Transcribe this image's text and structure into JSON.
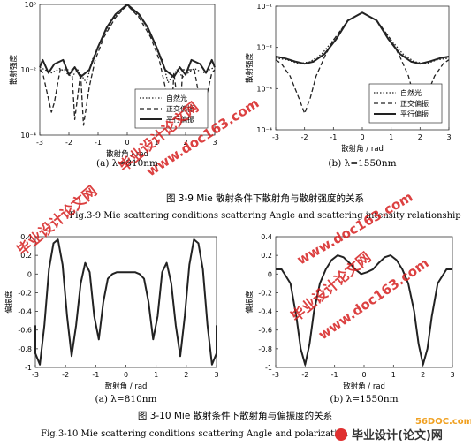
{
  "figure_3_9": {
    "caption_cn": "图 3-9   Mie 散射条件下散射角与散射强度的关系",
    "caption_en": "Fig.3-9 Mie scattering conditions scattering Angle and scattering intensity relationship"
  },
  "figure_3_10": {
    "caption_cn": "图 3-10   Mie 散射条件下散射角与偏振度的关系",
    "caption_en": "Fig.3-10 Mie scattering conditions scattering Angle and polarization"
  },
  "watermarks": {
    "site_cn": "毕业设计论文网",
    "site_url": "www.doc163.com",
    "footer_url": "56DOC.com",
    "footer_cn": "毕业设计(论文)网"
  },
  "colors": {
    "line": "#222222",
    "watermark": "#d62020"
  },
  "chart_data": [
    {
      "id": "intensity-810",
      "type": "line",
      "subtitle": "(a) λ=810nm",
      "xlabel": "散射角 / rad",
      "ylabel": "散射强度",
      "xlim": [
        -3,
        3
      ],
      "ylim": [
        0.0001,
        1
      ],
      "yscale": "log",
      "xticks": [
        "-3",
        "-2",
        "-1",
        "0",
        "1",
        "2",
        "3"
      ],
      "yticks": [
        "10⁰",
        "10⁻²",
        "10⁻⁴"
      ],
      "legend": "bottom-right",
      "series": [
        {
          "name": "自然光",
          "dash": "dotted",
          "x": [
            -3.1,
            -2.6,
            -2.3,
            -1.9,
            -1.7,
            -1.4,
            -1.2,
            -0.9,
            -0.5,
            0,
            0.5,
            0.9,
            1.2,
            1.4,
            1.7,
            1.9,
            2.3,
            2.6,
            3.1
          ],
          "y": [
            0.012,
            0.008,
            0.011,
            0.006,
            0.01,
            0.004,
            0.02,
            0.08,
            0.35,
            0.95,
            0.35,
            0.08,
            0.02,
            0.004,
            0.01,
            0.006,
            0.011,
            0.008,
            0.012
          ]
        },
        {
          "name": "正交偏振",
          "dash": "dashed",
          "x": [
            -3.1,
            -2.9,
            -2.6,
            -2.5,
            -2.3,
            -1.9,
            -1.8,
            -1.6,
            -1.5,
            -1.3,
            -1.1,
            -0.8,
            -0.4,
            0,
            0.4,
            0.8,
            1.1,
            1.3,
            1.5,
            1.6,
            1.8,
            1.9,
            2.3,
            2.5,
            2.6,
            2.9,
            3.1
          ],
          "y": [
            0.01,
            0.008,
            0.0005,
            0.001,
            0.01,
            0.01,
            0.0003,
            0.008,
            0.0002,
            0.003,
            0.02,
            0.1,
            0.4,
            0.95,
            0.4,
            0.1,
            0.02,
            0.003,
            0.0002,
            0.008,
            0.0003,
            0.01,
            0.01,
            0.001,
            0.0005,
            0.008,
            0.01
          ]
        },
        {
          "name": "平行偏振",
          "dash": "solid",
          "x": [
            -3.1,
            -2.9,
            -2.7,
            -2.5,
            -2.2,
            -2.0,
            -1.8,
            -1.6,
            -1.3,
            -1.0,
            -0.7,
            -0.4,
            0,
            0.4,
            0.7,
            1.0,
            1.3,
            1.6,
            1.8,
            2.0,
            2.2,
            2.5,
            2.7,
            2.9,
            3.1
          ],
          "y": [
            0.012,
            0.02,
            0.008,
            0.015,
            0.02,
            0.007,
            0.012,
            0.006,
            0.01,
            0.05,
            0.2,
            0.5,
            1.0,
            0.5,
            0.2,
            0.05,
            0.01,
            0.006,
            0.012,
            0.007,
            0.02,
            0.015,
            0.008,
            0.02,
            0.012
          ]
        }
      ]
    },
    {
      "id": "intensity-1550",
      "type": "line",
      "subtitle": "(b) λ=1550nm",
      "xlabel": "散射角 / rad",
      "ylabel": "散射强度",
      "xlim": [
        -3,
        3
      ],
      "ylim": [
        0.0001,
        0.1
      ],
      "yscale": "log",
      "xticks": [
        "-3",
        "-2",
        "-1",
        "0",
        "1",
        "2",
        "3"
      ],
      "yticks": [
        "10⁻¹",
        "10⁻²",
        "10⁻³",
        "10⁻⁴"
      ],
      "legend": "bottom-right",
      "series": [
        {
          "name": "自然光",
          "dash": "dotted",
          "x": [
            -3.1,
            -2.6,
            -2.2,
            -1.8,
            -1.4,
            -1.0,
            -0.5,
            0,
            0.5,
            1.0,
            1.4,
            1.8,
            2.2,
            2.6,
            3.1
          ],
          "y": [
            0.0055,
            0.005,
            0.004,
            0.0045,
            0.007,
            0.015,
            0.045,
            0.07,
            0.045,
            0.015,
            0.007,
            0.0045,
            0.004,
            0.005,
            0.0055
          ]
        },
        {
          "name": "正交偏振",
          "dash": "dashed",
          "x": [
            -3.1,
            -2.8,
            -2.5,
            -2.2,
            -2.0,
            -1.8,
            -1.6,
            -1.3,
            -1.0,
            -0.5,
            0,
            0.5,
            1.0,
            1.3,
            1.6,
            1.8,
            2.0,
            2.2,
            2.5,
            2.8,
            3.1
          ],
          "y": [
            0.005,
            0.004,
            0.002,
            0.0006,
            0.00025,
            0.0006,
            0.002,
            0.006,
            0.015,
            0.045,
            0.07,
            0.045,
            0.015,
            0.006,
            0.002,
            0.0006,
            0.00025,
            0.0006,
            0.002,
            0.004,
            0.005
          ]
        },
        {
          "name": "平行偏振",
          "dash": "solid",
          "x": [
            -3.1,
            -2.7,
            -2.3,
            -2.0,
            -1.7,
            -1.3,
            -0.9,
            -0.5,
            0,
            0.5,
            0.9,
            1.3,
            1.7,
            2.0,
            2.3,
            2.7,
            3.1
          ],
          "y": [
            0.006,
            0.0055,
            0.0045,
            0.004,
            0.0045,
            0.007,
            0.016,
            0.045,
            0.07,
            0.045,
            0.016,
            0.007,
            0.0045,
            0.004,
            0.0045,
            0.0055,
            0.006
          ]
        }
      ]
    },
    {
      "id": "polarization-810",
      "type": "line",
      "subtitle": "(a) λ=810nm",
      "xlabel": "散射角 / rad",
      "ylabel": "偏振度",
      "xlim": [
        -3,
        3
      ],
      "ylim": [
        -1,
        0.4
      ],
      "xticks": [
        "-3",
        "-2",
        "-1",
        "0",
        "1",
        "2",
        "3"
      ],
      "yticks": [
        "0.4",
        "0.2",
        "0",
        "-0.2",
        "-0.4",
        "-0.6",
        "-0.8",
        "-1"
      ],
      "series": [
        {
          "name": "偏振度",
          "dash": "solid",
          "x": [
            -3.1,
            -3.0,
            -2.85,
            -2.7,
            -2.55,
            -2.4,
            -2.25,
            -2.1,
            -1.95,
            -1.8,
            -1.65,
            -1.5,
            -1.35,
            -1.2,
            -1.05,
            -0.9,
            -0.75,
            -0.6,
            -0.45,
            -0.3,
            -0.15,
            0,
            0.15,
            0.3,
            0.45,
            0.6,
            0.75,
            0.9,
            1.05,
            1.2,
            1.35,
            1.5,
            1.65,
            1.8,
            1.95,
            2.1,
            2.25,
            2.4,
            2.55,
            2.7,
            2.85,
            3.0,
            3.1
          ],
          "y": [
            -0.55,
            -0.85,
            -0.97,
            -0.55,
            0.05,
            0.33,
            0.37,
            0.1,
            -0.45,
            -0.88,
            -0.55,
            -0.1,
            0.12,
            0.02,
            -0.45,
            -0.7,
            -0.3,
            -0.05,
            0.0,
            0.02,
            0.02,
            0.02,
            0.02,
            0.02,
            0.0,
            -0.05,
            -0.3,
            -0.7,
            -0.45,
            0.02,
            0.12,
            -0.1,
            -0.55,
            -0.88,
            -0.45,
            0.1,
            0.37,
            0.33,
            0.05,
            -0.55,
            -0.97,
            -0.85,
            -0.55
          ]
        }
      ]
    },
    {
      "id": "polarization-1550",
      "type": "line",
      "subtitle": "(b) λ=1550nm",
      "xlabel": "散射角 / rad",
      "ylabel": "偏振度",
      "xlim": [
        -3,
        3
      ],
      "ylim": [
        -1,
        0.4
      ],
      "xticks": [
        "-3",
        "-2",
        "-1",
        "0",
        "1",
        "2",
        "3"
      ],
      "yticks": [
        "0.4",
        "0.2",
        "0",
        "-0.2",
        "-0.4",
        "-0.6",
        "-0.8",
        "-1"
      ],
      "series": [
        {
          "name": "偏振度",
          "dash": "solid",
          "x": [
            -3.1,
            -2.8,
            -2.5,
            -2.3,
            -2.15,
            -2.0,
            -1.85,
            -1.7,
            -1.5,
            -1.3,
            -1.1,
            -0.9,
            -0.7,
            -0.5,
            -0.3,
            -0.1,
            0.1,
            0.3,
            0.5,
            0.7,
            0.9,
            1.1,
            1.3,
            1.5,
            1.7,
            1.85,
            2.0,
            2.15,
            2.3,
            2.5,
            2.8,
            3.1
          ],
          "y": [
            0.05,
            0.05,
            -0.1,
            -0.45,
            -0.8,
            -0.97,
            -0.75,
            -0.4,
            -0.1,
            0.05,
            0.15,
            0.2,
            0.18,
            0.12,
            0.05,
            0.0,
            0.02,
            0.05,
            0.12,
            0.18,
            0.2,
            0.15,
            0.05,
            -0.1,
            -0.4,
            -0.75,
            -0.97,
            -0.8,
            -0.45,
            -0.1,
            0.05,
            0.05
          ]
        }
      ]
    }
  ]
}
